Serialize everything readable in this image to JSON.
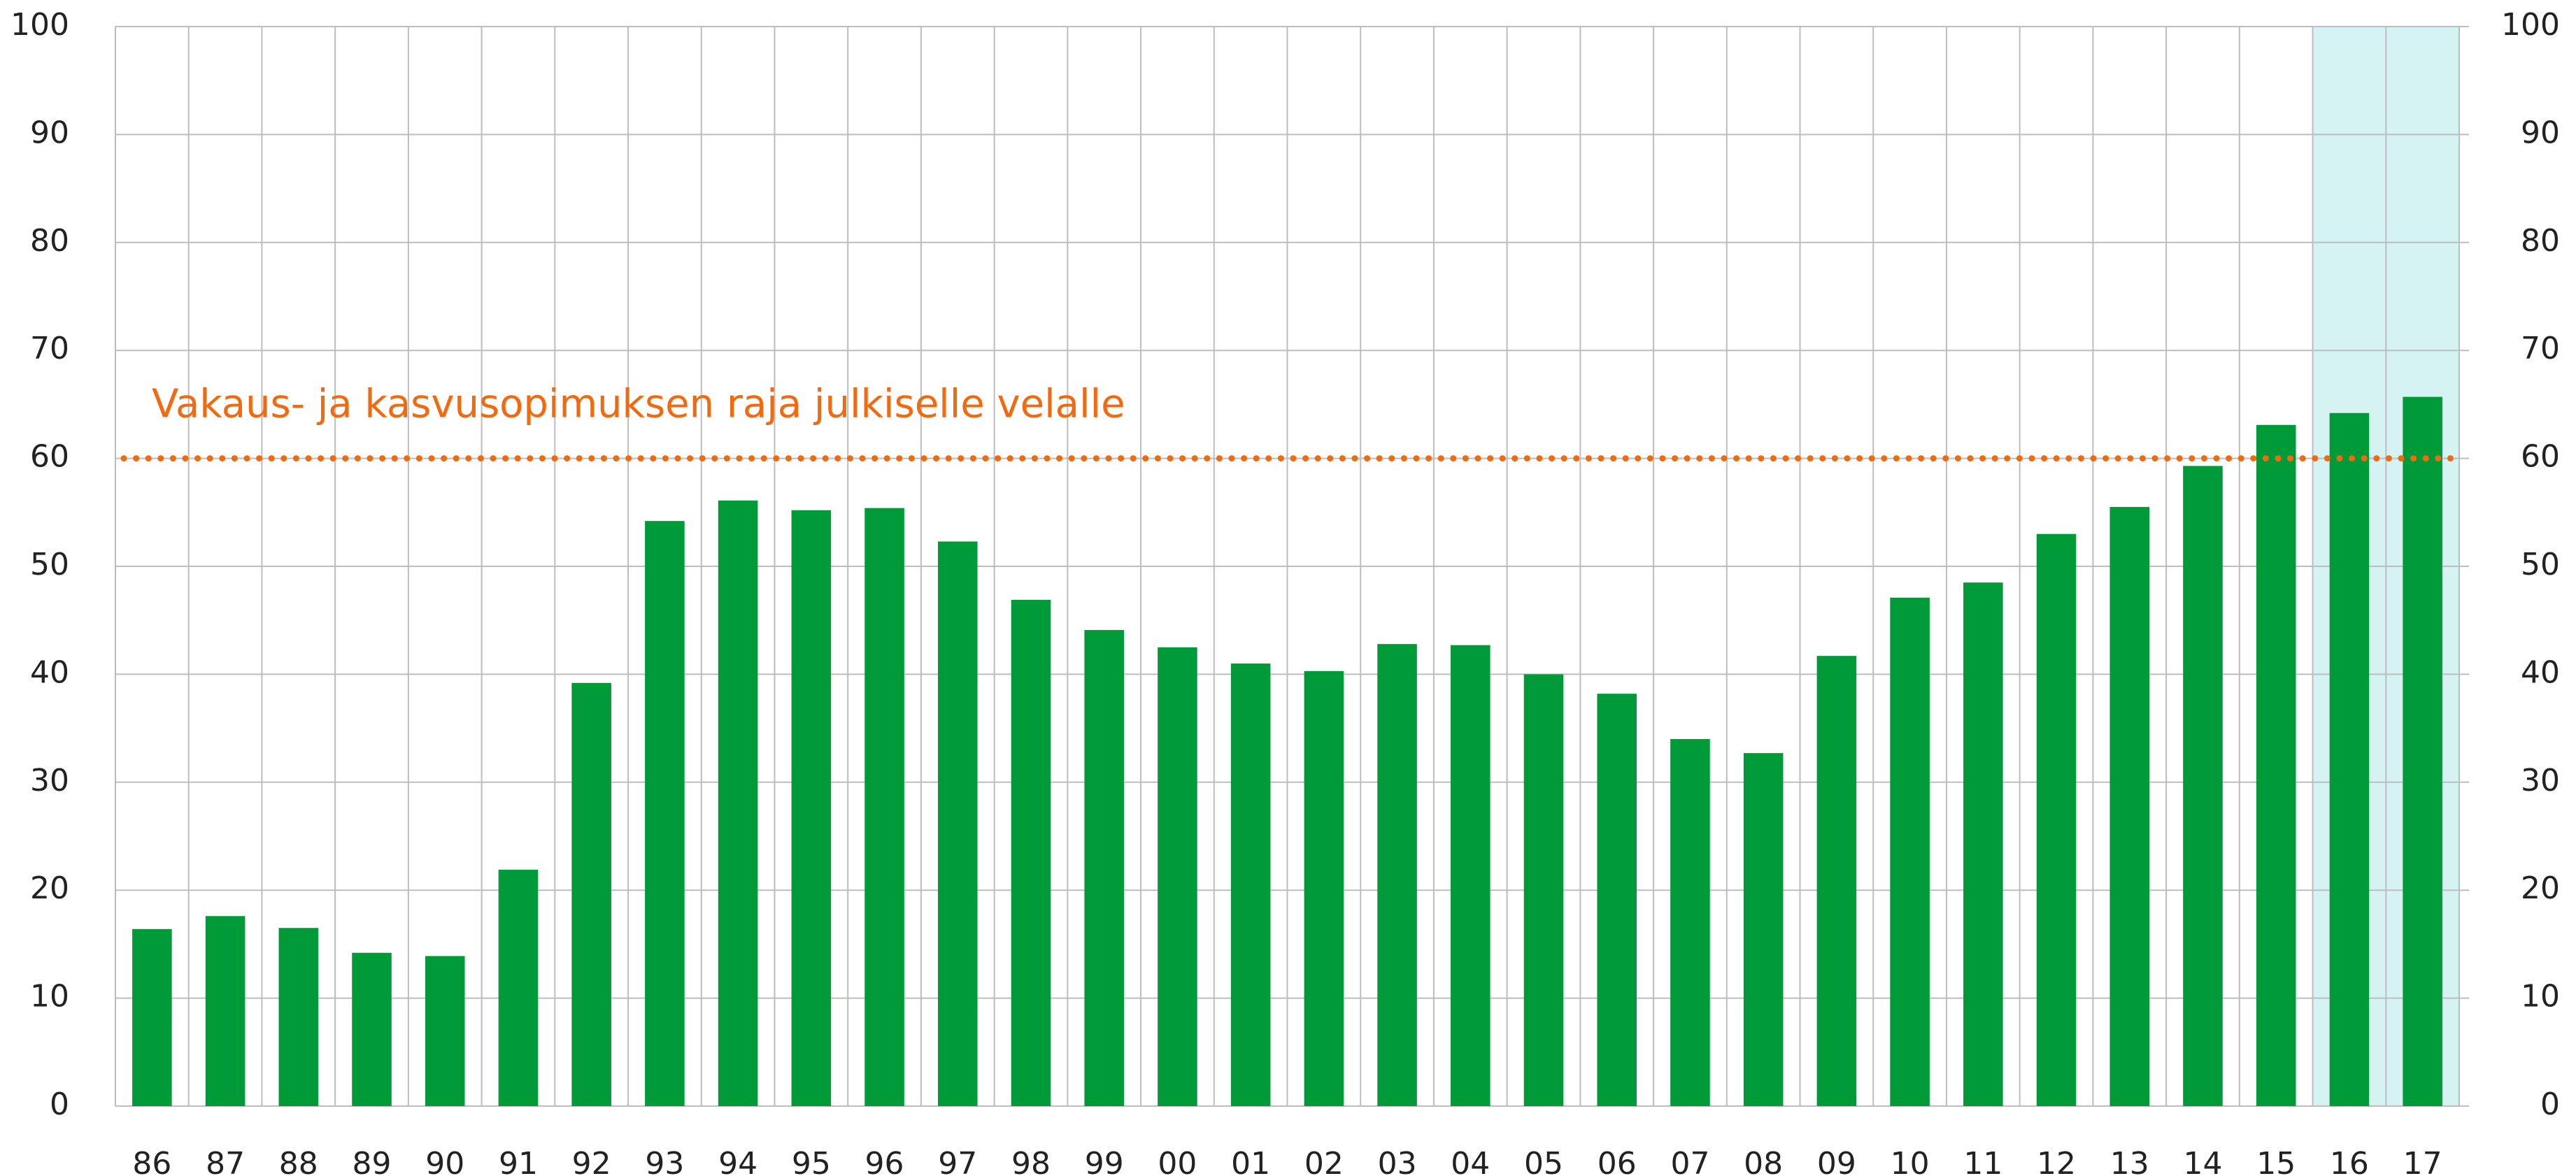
{
  "chart_data": {
    "type": "bar",
    "categories": [
      "86",
      "87",
      "88",
      "89",
      "90",
      "91",
      "92",
      "93",
      "94",
      "95",
      "96",
      "97",
      "98",
      "99",
      "00",
      "01",
      "02",
      "03",
      "04",
      "05",
      "06",
      "07",
      "08",
      "09",
      "10",
      "11",
      "12",
      "13",
      "14",
      "15",
      "16",
      "17"
    ],
    "values": [
      16.4,
      17.6,
      16.5,
      14.2,
      13.9,
      21.9,
      39.2,
      54.2,
      56.1,
      55.2,
      55.4,
      52.3,
      46.9,
      44.1,
      42.5,
      41.0,
      40.3,
      42.8,
      42.7,
      40.0,
      38.2,
      34.0,
      32.7,
      41.7,
      47.1,
      48.5,
      53.0,
      55.5,
      59.3,
      63.1,
      64.2,
      65.7
    ],
    "color": "#009a38",
    "ylim": [
      0,
      100
    ],
    "yticks": [
      0,
      10,
      20,
      30,
      40,
      50,
      60,
      70,
      80,
      90,
      100
    ],
    "y2lim": [
      0,
      100
    ],
    "grid": true,
    "highlight_categories": [
      "16",
      "17"
    ],
    "highlight_color": "#d5f3f3",
    "reference_lines": [
      {
        "value": 60,
        "label": "Vakaus- ja kasvusopimuksen raja julkiselle velalle",
        "color": "#f26a0f"
      }
    ]
  }
}
